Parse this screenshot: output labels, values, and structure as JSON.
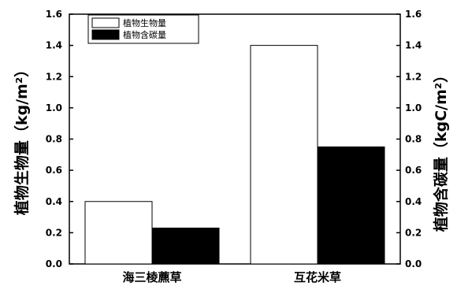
{
  "chart_data": {
    "type": "bar",
    "categories": [
      "海三棱藨草",
      "互花米草"
    ],
    "series": [
      {
        "name": "植物生物量",
        "values": [
          0.4,
          1.4
        ],
        "color": "#ffffff",
        "axis": "left"
      },
      {
        "name": "植物含碳量",
        "values": [
          0.23,
          0.75
        ],
        "color": "#000000",
        "axis": "right"
      }
    ],
    "ylabel": "植物生物量（kg/m²）",
    "y2label": "植物含碳量（kgC/m²）",
    "ylim": [
      0,
      1.6
    ],
    "y2lim": [
      0,
      1.6
    ],
    "yticks": [
      "0.0",
      "0.2",
      "0.4",
      "0.6",
      "0.8",
      "1.0",
      "1.2",
      "1.4",
      "1.6"
    ],
    "grid": false,
    "legend_position": "top-left"
  }
}
